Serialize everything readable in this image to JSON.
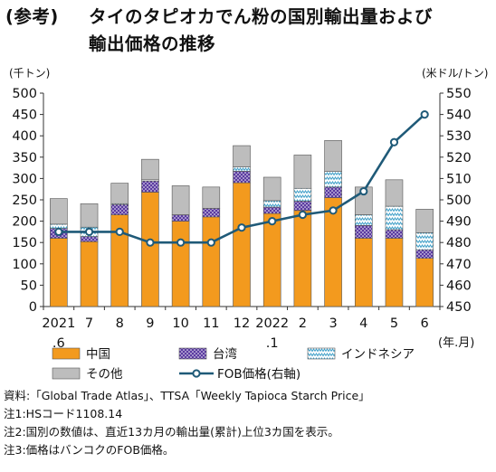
{
  "title": {
    "tag": "(参考)",
    "line1": "タイのタピオカでん粉の国別輸出量および",
    "line2": "輸出価格の推移"
  },
  "units": {
    "left": "(千トン)",
    "right": "(米ドル/トン)"
  },
  "chart_data": {
    "type": "bar",
    "stacked": true,
    "categories": [
      "2021\n.6",
      "7",
      "8",
      "9",
      "10",
      "11",
      "12",
      "2022\n.1",
      "2",
      "3",
      "4",
      "5",
      "6"
    ],
    "x_unit_label": "(年.月)",
    "y_left": {
      "range": [
        0,
        500
      ],
      "ticks": [
        0,
        50,
        100,
        150,
        200,
        250,
        300,
        350,
        400,
        450,
        500
      ]
    },
    "y_right": {
      "range": [
        450,
        550
      ],
      "ticks": [
        450,
        460,
        470,
        480,
        490,
        500,
        510,
        520,
        530,
        540,
        550
      ]
    },
    "grid": false,
    "legend_position": "bottom",
    "series": [
      {
        "name": "中国",
        "color": "#f39a1e",
        "pattern": "solid",
        "values": [
          160,
          152,
          215,
          268,
          200,
          210,
          290,
          218,
          225,
          255,
          160,
          160,
          113
        ]
      },
      {
        "name": "台湾",
        "color": "#5a3aa0",
        "pattern": "dots",
        "values": [
          23,
          12,
          24,
          26,
          15,
          20,
          27,
          15,
          22,
          25,
          30,
          20,
          20
        ]
      },
      {
        "name": "インドネシア",
        "color": "#3f9fc8",
        "pattern": "zigzag",
        "values": [
          10,
          22,
          2,
          3,
          0,
          0,
          10,
          15,
          30,
          37,
          25,
          55,
          40
        ]
      },
      {
        "name": "その他",
        "color": "#bdbdbd",
        "pattern": "solid",
        "values": [
          60,
          55,
          48,
          48,
          68,
          50,
          50,
          55,
          78,
          72,
          65,
          62,
          55
        ]
      }
    ],
    "line_series": {
      "name": "FOB価格(右軸)",
      "axis": "right",
      "color": "#1f5a78",
      "values": [
        485,
        485,
        485,
        480,
        480,
        480,
        487,
        490,
        493,
        495,
        504,
        527,
        540
      ]
    }
  },
  "notes": [
    "資料:「Global Trade Atlas」、TTSA「Weekly Tapioca Starch Price」",
    "注1:HSコード1108.14",
    "注2:国別の数値は、直近13カ月の輸出量(累計)上位3カ国を表示。",
    "注3:価格はバンコクのFOB価格。"
  ]
}
